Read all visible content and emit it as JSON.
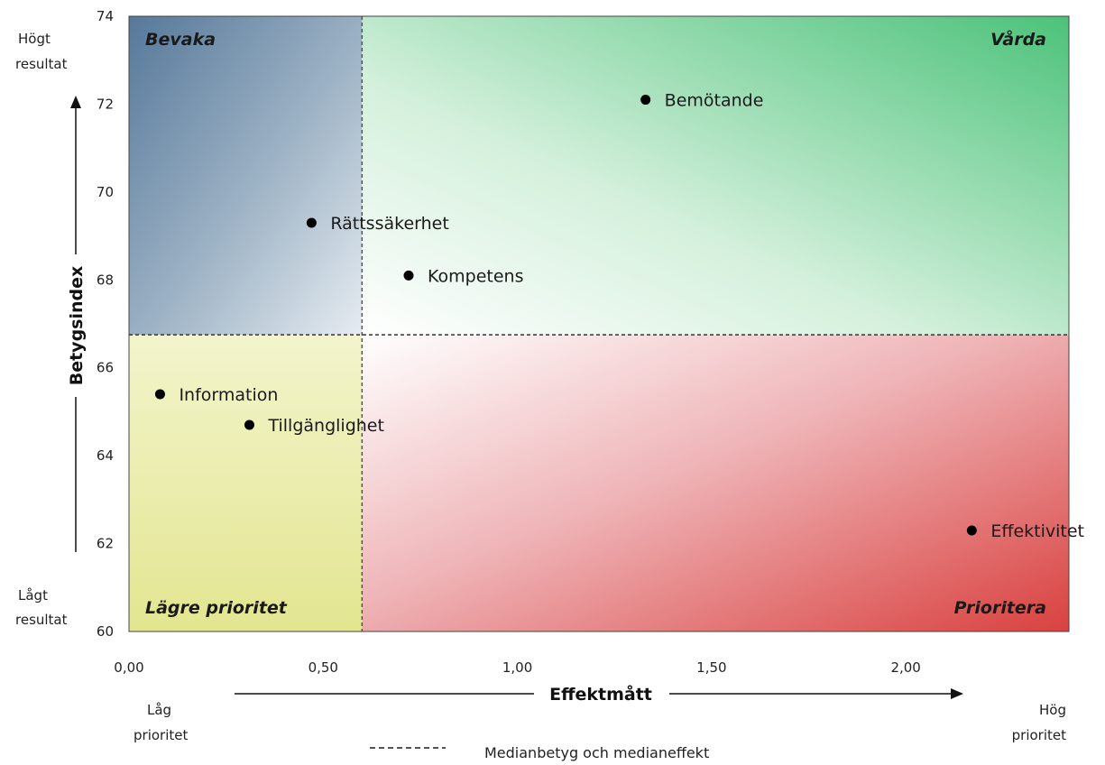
{
  "chart_data": {
    "type": "scatter",
    "xlabel": "Effektmått",
    "ylabel": "Betygsindex",
    "xlim": [
      0,
      2.42
    ],
    "ylim": [
      60,
      74
    ],
    "x_ticks": [
      "0,00",
      "0,50",
      "1,00",
      "1,50",
      "2,00"
    ],
    "y_ticks": [
      "60",
      "62",
      "64",
      "66",
      "68",
      "70",
      "72",
      "74"
    ],
    "median_x": 0.6,
    "median_y": 66.75,
    "points": [
      {
        "label": "Bemötande",
        "x": 1.33,
        "y": 72.1
      },
      {
        "label": "Rättssäkerhet",
        "x": 0.47,
        "y": 69.3
      },
      {
        "label": "Kompetens",
        "x": 0.72,
        "y": 68.1
      },
      {
        "label": "Information",
        "x": 0.08,
        "y": 65.4
      },
      {
        "label": "Tillgänglighet",
        "x": 0.31,
        "y": 64.7
      },
      {
        "label": "Effektivitet",
        "x": 2.17,
        "y": 62.3
      }
    ],
    "quadrants": {
      "top_left": "Bevaka",
      "top_right": "Vårda",
      "bottom_left": "Lägre prioritet",
      "bottom_right": "Prioritera"
    },
    "y_side_labels": {
      "high_line1": "Högt",
      "high_line2": "resultat",
      "low_line1": "Lågt",
      "low_line2": "resultat"
    },
    "x_side_labels": {
      "low_line1": "Låg",
      "low_line2": "prioritet",
      "high_line1": "Hög",
      "high_line2": "prioritet"
    },
    "legend": {
      "label": "Medianbetyg och medianeffekt",
      "position": "bottom-center"
    },
    "colors": {
      "bevaka": "#5b7c99",
      "varda": "#4cc27a",
      "lagre": "#e8eba0",
      "prioritera": "#d94a4a",
      "median_line": "#555555",
      "point": "#000000"
    }
  }
}
